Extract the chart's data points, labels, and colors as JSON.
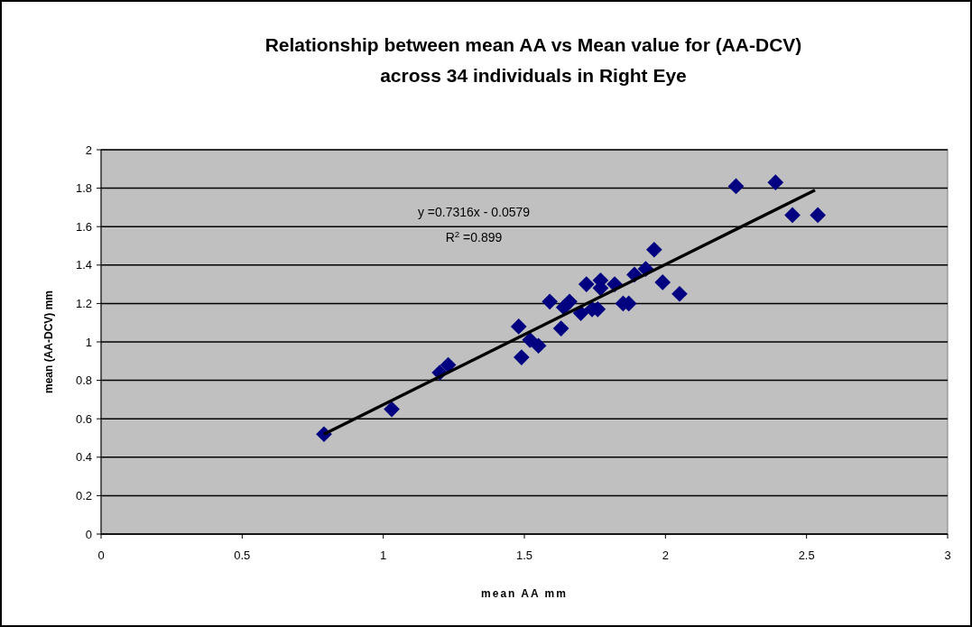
{
  "chart_data": {
    "type": "scatter",
    "title": "Relationship between mean AA vs Mean value for (AA-DCV)\nacross 34 individuals in Right Eye",
    "xlabel": "mean AA mm",
    "ylabel": "mean (AA-DCV) mm",
    "xlim": [
      0,
      3
    ],
    "ylim": [
      0,
      2
    ],
    "xticks": [
      0,
      0.5,
      1,
      1.5,
      2,
      2.5,
      3
    ],
    "yticks": [
      0,
      0.2,
      0.4,
      0.6,
      0.8,
      1,
      1.2,
      1.4,
      1.6,
      1.8,
      2
    ],
    "grid": "y",
    "marker": "diamond",
    "series": [
      {
        "color": "#000080",
        "x": [
          0.79,
          1.03,
          1.2,
          1.23,
          1.48,
          1.49,
          1.52,
          1.55,
          1.59,
          1.63,
          1.64,
          1.66,
          1.7,
          1.72,
          1.74,
          1.76,
          1.77,
          1.77,
          1.82,
          1.85,
          1.87,
          1.89,
          1.93,
          1.96,
          1.99,
          2.05,
          2.25,
          2.39,
          2.45,
          2.54
        ],
        "values": [
          0.52,
          0.65,
          0.84,
          0.88,
          1.08,
          0.92,
          1.01,
          0.98,
          1.21,
          1.07,
          1.18,
          1.21,
          1.15,
          1.3,
          1.17,
          1.17,
          1.32,
          1.28,
          1.3,
          1.2,
          1.2,
          1.35,
          1.38,
          1.48,
          1.31,
          1.25,
          1.81,
          1.83,
          1.66,
          1.66
        ]
      },
      {
        "type": "line",
        "color": "#000000",
        "marker": "none",
        "x": [
          0.79,
          2.53
        ],
        "values": [
          0.52,
          1.79
        ]
      }
    ],
    "annotations": [
      "y =0.7316x - 0.0579",
      "R$^{2}$ =0.899"
    ]
  }
}
